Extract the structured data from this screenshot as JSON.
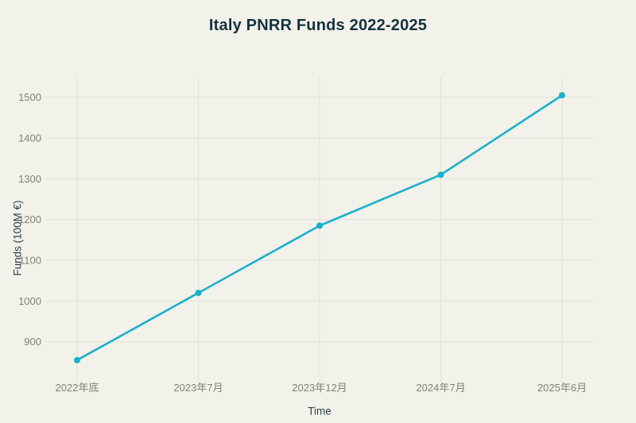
{
  "page": {
    "background": "#f2f1ea"
  },
  "chart_data": {
    "type": "line",
    "title": "Italy PNRR Funds 2022-2025",
    "xlabel": "Time",
    "ylabel": "Funds (100M €)",
    "categories": [
      "2022年底",
      "2023年7月",
      "2023年12月",
      "2024年7月",
      "2025年6月"
    ],
    "series": [
      {
        "name": "Funds",
        "values": [
          855,
          1020,
          1185,
          1310,
          1505
        ]
      }
    ],
    "ylim": [
      800,
      1550
    ],
    "yticks": [
      900,
      1000,
      1100,
      1200,
      1300,
      1400,
      1500
    ],
    "grid": true,
    "legend": "none",
    "colors": {
      "line": "#17b1cc",
      "marker": "#17b1cc",
      "grid": "#e4e3da",
      "tick_label": "#81817a",
      "axis_label": "#2d434c",
      "title": "#13323c",
      "background": "#f2f1ea"
    }
  }
}
